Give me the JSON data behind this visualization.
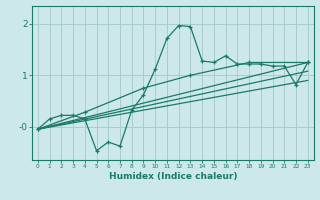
{
  "xlabel": "Humidex (Indice chaleur)",
  "background_color": "#cce8e8",
  "grid_color": "#aacccc",
  "line_color": "#1a7a6a",
  "xlim": [
    -0.5,
    23.5
  ],
  "ylim": [
    -0.65,
    2.35
  ],
  "yticks": [
    0,
    1,
    2
  ],
  "ytick_labels": [
    "-0",
    "1",
    "2"
  ],
  "xticks": [
    0,
    1,
    2,
    3,
    4,
    5,
    6,
    7,
    8,
    9,
    10,
    11,
    12,
    13,
    14,
    15,
    16,
    17,
    18,
    19,
    20,
    21,
    22,
    23
  ],
  "line1_x": [
    0,
    1,
    2,
    3,
    4,
    5,
    6,
    7,
    8,
    9,
    10,
    11,
    12,
    13,
    14,
    15,
    16,
    17,
    18,
    19,
    20,
    21,
    22,
    23
  ],
  "line1_y": [
    -0.05,
    0.15,
    0.22,
    0.22,
    0.15,
    -0.47,
    -0.3,
    -0.38,
    0.32,
    0.62,
    1.12,
    1.72,
    1.97,
    1.95,
    1.28,
    1.25,
    1.38,
    1.22,
    1.22,
    1.22,
    1.18,
    1.18,
    0.82,
    1.25
  ],
  "line2_x": [
    0,
    4,
    9,
    13,
    18,
    23
  ],
  "line2_y": [
    -0.05,
    0.28,
    0.75,
    1.0,
    1.25,
    1.25
  ],
  "line3_x": [
    0,
    23
  ],
  "line3_y": [
    -0.05,
    1.25
  ],
  "line4_x": [
    0,
    23
  ],
  "line4_y": [
    -0.05,
    1.08
  ],
  "line5_x": [
    0,
    23
  ],
  "line5_y": [
    -0.05,
    0.9
  ]
}
